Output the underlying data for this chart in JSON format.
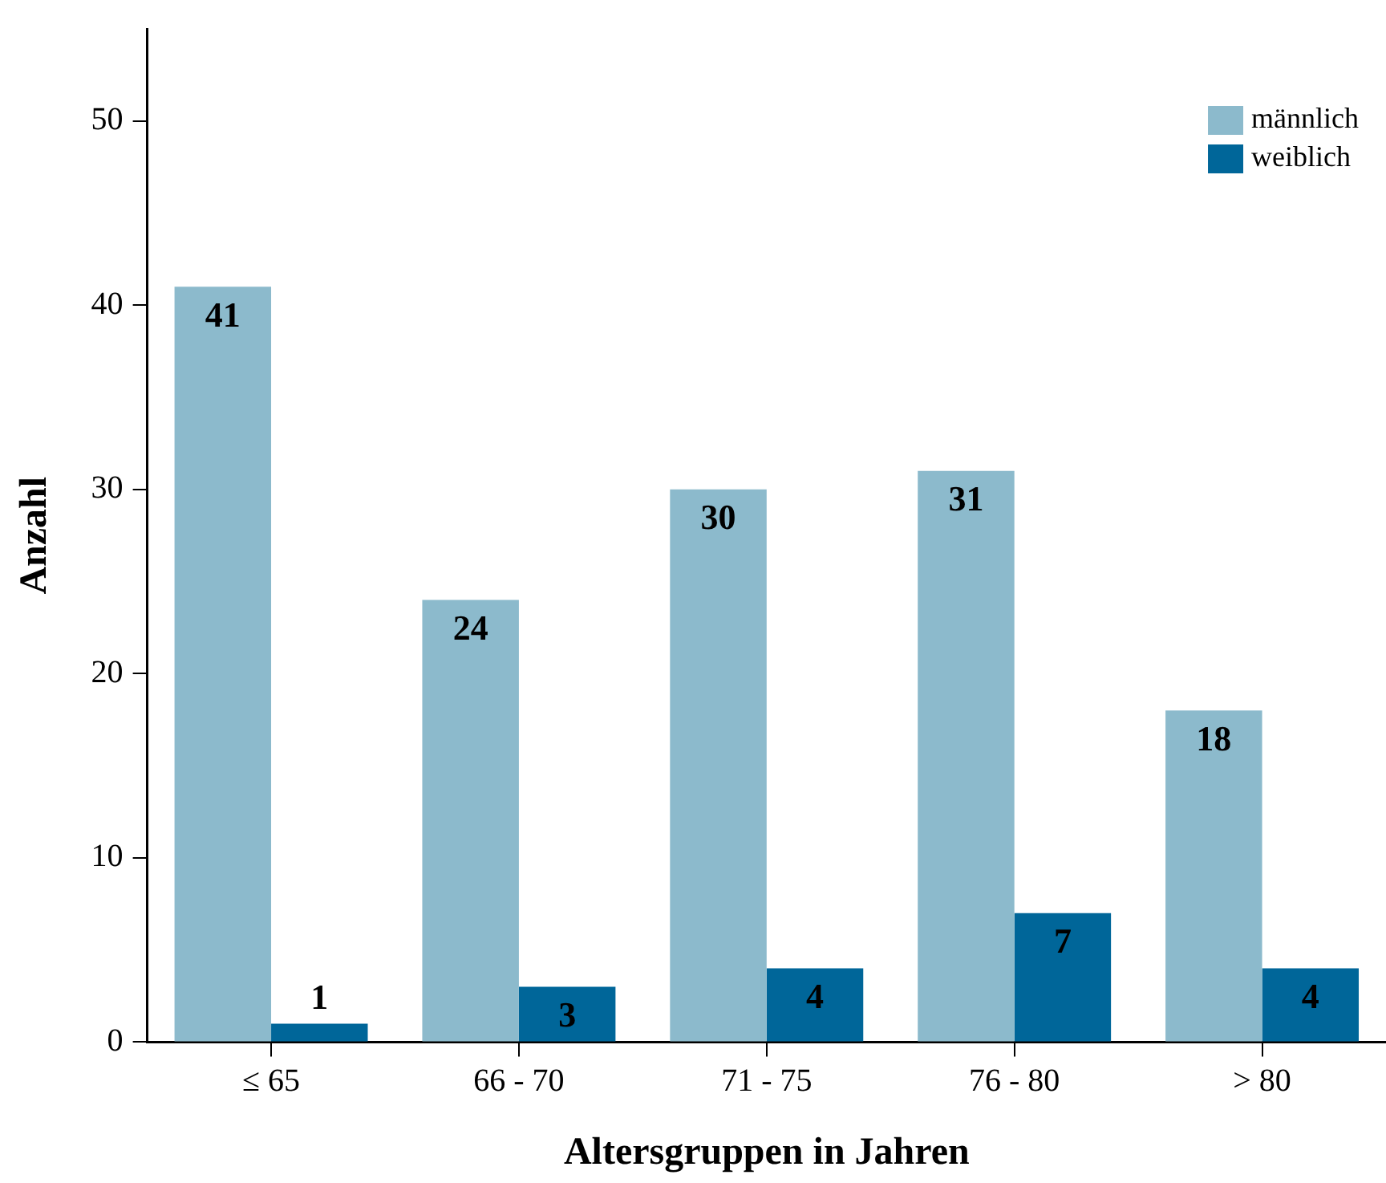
{
  "chart_data": {
    "type": "bar",
    "xlabel": "Altersgruppen in Jahren",
    "ylabel": "Anzahl",
    "categories": [
      "≤ 65",
      "66 - 70",
      "71 - 75",
      "76 - 80",
      "> 80"
    ],
    "series": [
      {
        "name": "männlich",
        "color": "#8cbacc",
        "values": [
          41,
          24,
          30,
          31,
          18
        ]
      },
      {
        "name": "weiblich",
        "color": "#006699",
        "values": [
          1,
          3,
          4,
          7,
          4
        ]
      }
    ],
    "ylim": [
      0,
      55
    ],
    "yticks": [
      0,
      10,
      20,
      30,
      40,
      50
    ],
    "grid": false,
    "legend": "top right",
    "data_labels": true
  }
}
